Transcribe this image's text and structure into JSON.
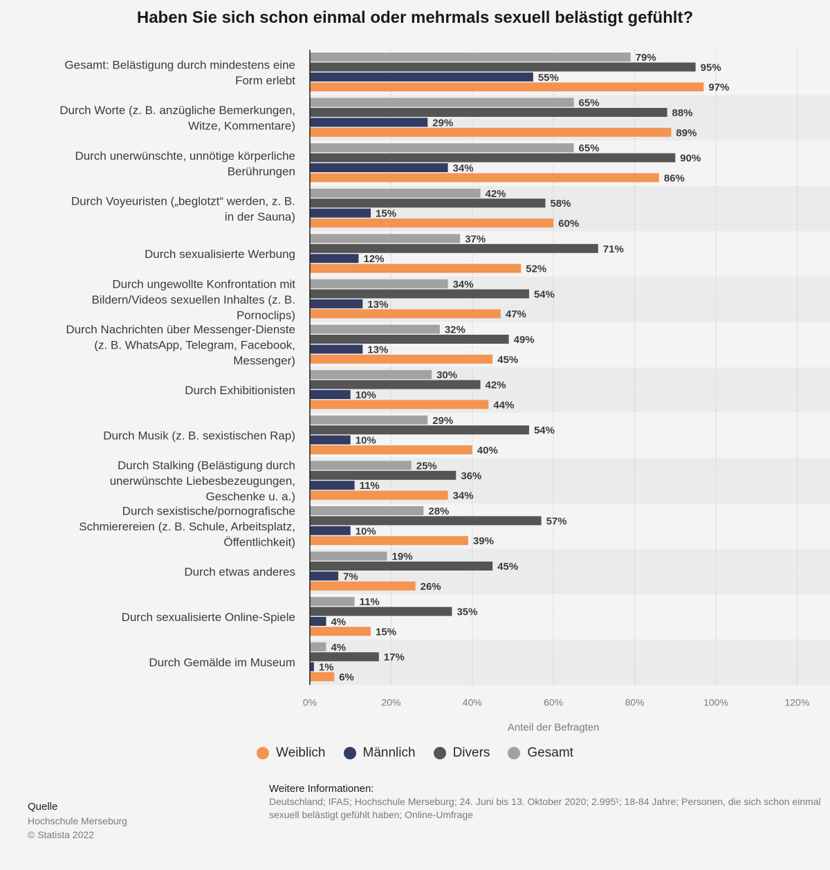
{
  "chart_data": {
    "type": "bar",
    "orientation": "horizontal",
    "title": "Haben Sie sich schon einmal oder mehrmals sexuell belästigt gefühlt?",
    "xlabel": "Anteil der Befragten",
    "ylabel": "",
    "xlim": [
      0,
      120
    ],
    "ticks": [
      "0%",
      "20%",
      "40%",
      "60%",
      "80%",
      "100%",
      "120%"
    ],
    "categories": [
      [
        "Gesamt: Belästigung durch mindestens eine",
        "Form erlebt"
      ],
      [
        "Durch Worte (z. B. anzügliche Bemerkungen,",
        "Witze, Kommentare)"
      ],
      [
        "Durch unerwünschte, unnötige körperliche",
        "Berührungen"
      ],
      [
        "Durch Voyeuristen („beglotzt“ werden, z. B.",
        "in der Sauna)"
      ],
      [
        "Durch sexualisierte Werbung"
      ],
      [
        "Durch ungewollte Konfrontation mit",
        "Bildern/Videos sexuellen Inhaltes (z. B.",
        "Pornoclips)"
      ],
      [
        "Durch Nachrichten über Messenger-Dienste",
        "(z. B. WhatsApp, Telegram, Facebook,",
        "Messenger)"
      ],
      [
        "Durch Exhibitionisten"
      ],
      [
        "Durch Musik (z. B. sexistischen Rap)"
      ],
      [
        "Durch Stalking (Belästigung durch",
        "unerwünschte Liebesbezeugungen,",
        "Geschenke u. a.)"
      ],
      [
        "Durch sexistische/pornografische",
        "Schmierereien (z. B. Schule, Arbeitsplatz,",
        "Öffentlichkeit)"
      ],
      [
        "Durch etwas anderes"
      ],
      [
        "Durch sexualisierte Online-Spiele"
      ],
      [
        "Durch Gemälde im Museum"
      ]
    ],
    "series": [
      {
        "name": "Gesamt",
        "color": "#a2a2a2",
        "values": [
          79,
          65,
          65,
          42,
          37,
          34,
          32,
          30,
          29,
          25,
          28,
          19,
          11,
          4
        ]
      },
      {
        "name": "Divers",
        "color": "#555555",
        "values": [
          95,
          88,
          90,
          58,
          71,
          54,
          49,
          42,
          54,
          36,
          57,
          45,
          35,
          17
        ]
      },
      {
        "name": "Männlich",
        "color": "#333c63",
        "values": [
          55,
          29,
          34,
          15,
          12,
          13,
          13,
          10,
          10,
          11,
          10,
          7,
          4,
          1
        ]
      },
      {
        "name": "Weiblich",
        "color": "#f39451",
        "values": [
          97,
          89,
          86,
          60,
          52,
          47,
          45,
          44,
          40,
          34,
          39,
          26,
          15,
          6
        ]
      }
    ],
    "value_suffix": "%",
    "legend_position": "bottom"
  },
  "legend": [
    {
      "label": "Weiblich",
      "color": "#f39451"
    },
    {
      "label": "Männlich",
      "color": "#333c63"
    },
    {
      "label": "Divers",
      "color": "#555555"
    },
    {
      "label": "Gesamt",
      "color": "#a2a2a2"
    }
  ],
  "source": {
    "heading": "Quelle",
    "lines": [
      "Hochschule Merseburg",
      "© Statista 2022"
    ]
  },
  "info": {
    "heading": "Weitere Informationen:",
    "text": "Deutschland; IFAS; Hochschule Merseburg; 24. Juni bis 13. Oktober 2020; 2.995¹; 18-84 Jahre; Personen, die sich schon einmal sexuell belästigt gefühlt haben; Online-Umfrage"
  }
}
